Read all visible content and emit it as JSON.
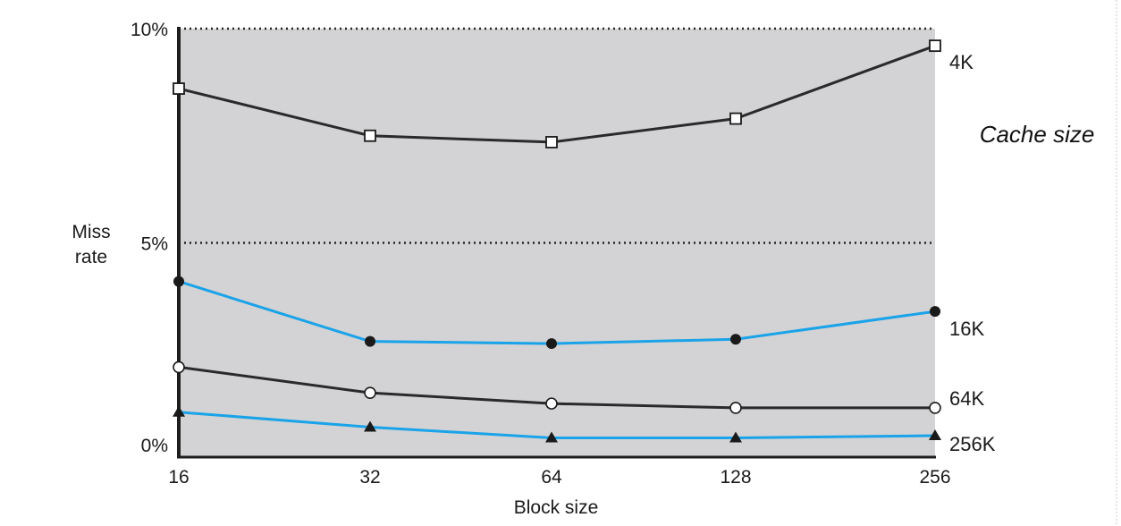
{
  "chart_data": {
    "type": "line",
    "xlabel": "Block size",
    "ylabel_lines": [
      "Miss",
      "rate"
    ],
    "x_categories": [
      "16",
      "32",
      "64",
      "128",
      "256"
    ],
    "y_ticks": [
      "0%",
      "5%",
      "10%"
    ],
    "ylim": [
      0,
      10
    ],
    "legend_title": "Cache size",
    "grid": "horizontal dotted lines at 5% and 10%",
    "series": [
      {
        "name": "4K",
        "marker": "open-square",
        "color": "#2a2a2a",
        "values": [
          8.6,
          7.5,
          7.35,
          7.9,
          9.6
        ]
      },
      {
        "name": "16K",
        "marker": "filled-circle",
        "color": "#1aa3e8",
        "values": [
          4.1,
          2.7,
          2.65,
          2.75,
          3.4
        ]
      },
      {
        "name": "64K",
        "marker": "open-circle",
        "color": "#2a2a2a",
        "values": [
          2.1,
          1.5,
          1.25,
          1.15,
          1.15
        ]
      },
      {
        "name": "256K",
        "marker": "filled-triangle",
        "color": "#1aa3e8",
        "values": [
          1.05,
          0.7,
          0.45,
          0.45,
          0.5
        ]
      }
    ]
  },
  "colors": {
    "plot_background": "#d3d3d5",
    "axis": "#1e1e1e"
  }
}
